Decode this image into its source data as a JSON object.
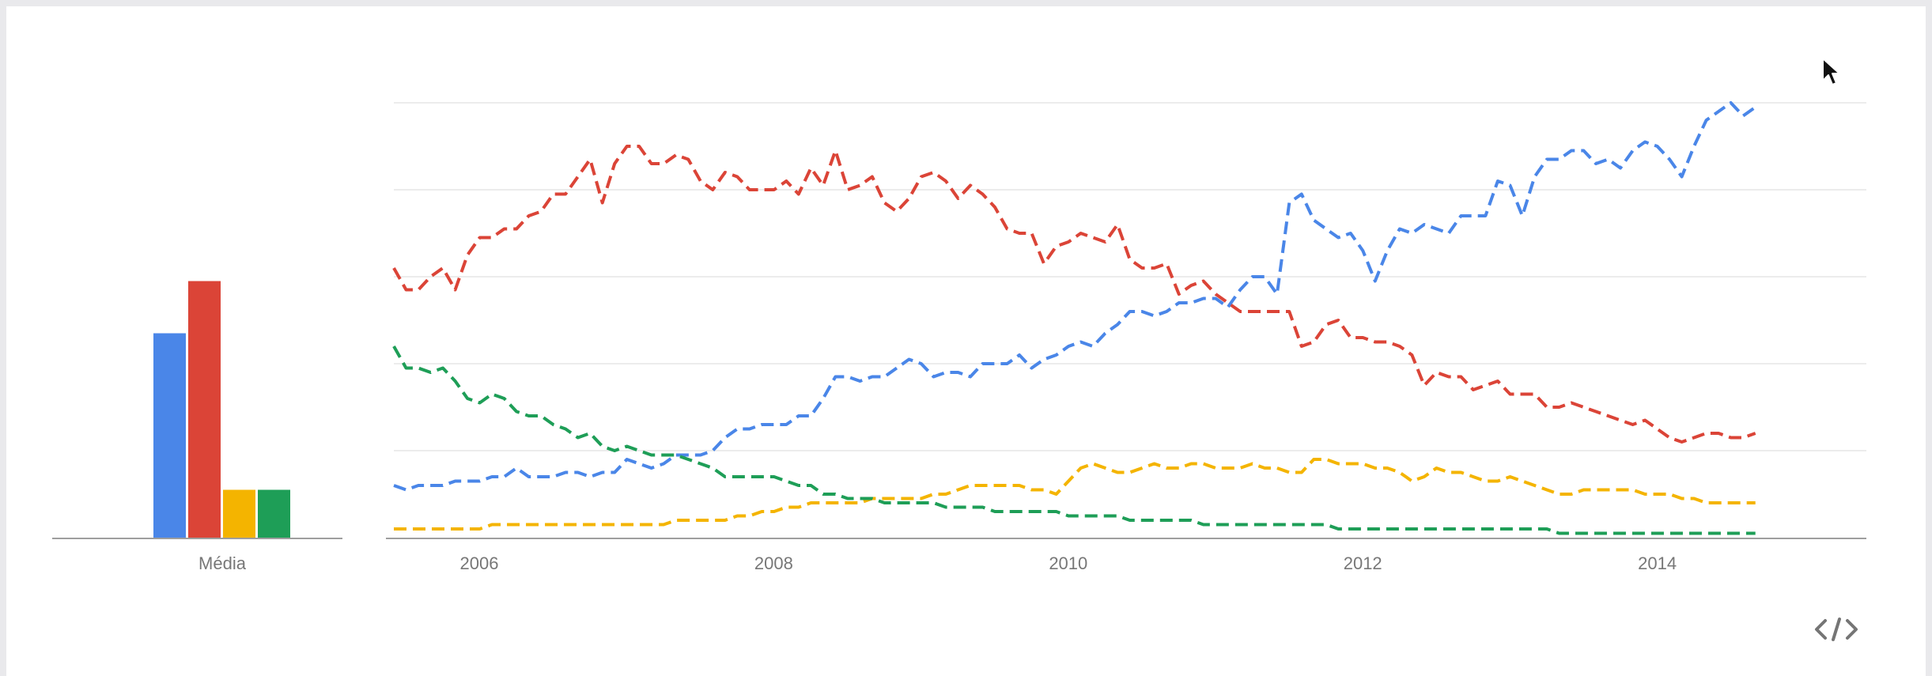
{
  "colors": {
    "blue": "#4a86e8",
    "red": "#db4437",
    "yellow": "#f4b400",
    "green": "#1e9e57",
    "grid": "#ececec",
    "axis": "#9e9e9e",
    "label": "#777777"
  },
  "icons": {
    "embed": "code-brackets-icon",
    "cursor": "mouse-pointer-icon"
  },
  "chart_data": [
    {
      "type": "bar",
      "categories": [
        "Média"
      ],
      "series": [
        {
          "color": "#4a86e8",
          "values": [
            47
          ]
        },
        {
          "color": "#db4437",
          "values": [
            59
          ]
        },
        {
          "color": "#f4b400",
          "values": [
            11
          ]
        },
        {
          "color": "#1e9e57",
          "values": [
            11
          ]
        }
      ],
      "ylim": [
        0,
        100
      ],
      "grid": false
    },
    {
      "type": "line",
      "line_style": "dashed",
      "x_start": 2005.42,
      "x_step": 0.0833,
      "xlim": [
        2005.42,
        2015.42
      ],
      "ylim": [
        0,
        100
      ],
      "x_tick_labels": [
        "2006",
        "2008",
        "2010",
        "2012",
        "2014"
      ],
      "x_ticks": [
        2006,
        2008,
        2010,
        2012,
        2014
      ],
      "grid": true,
      "y_gridlines": [
        20,
        40,
        60,
        80,
        100
      ],
      "series": [
        {
          "color": "#4a86e8",
          "values": [
            12,
            11,
            12,
            12,
            12,
            13,
            13,
            13,
            14,
            14,
            16,
            14,
            14,
            14,
            15,
            15,
            14,
            15,
            15,
            18,
            17,
            16,
            17,
            19,
            19,
            19,
            20,
            23,
            25,
            25,
            26,
            26,
            26,
            28,
            28,
            32,
            37,
            37,
            36,
            37,
            37,
            39,
            41,
            40,
            37,
            38,
            38,
            37,
            40,
            40,
            40,
            42,
            39,
            41,
            42,
            44,
            45,
            44,
            47,
            49,
            52,
            52,
            51,
            52,
            54,
            54,
            55,
            55,
            53,
            57,
            60,
            60,
            56,
            77,
            79,
            73,
            71,
            69,
            70,
            66,
            59,
            66,
            71,
            70,
            72,
            71,
            70,
            74,
            74,
            74,
            82,
            81,
            74,
            83,
            87,
            87,
            89,
            89,
            86,
            87,
            85,
            89,
            91,
            90,
            87,
            83,
            90,
            96,
            98,
            100,
            97,
            99
          ]
        },
        {
          "color": "#db4437",
          "values": [
            62,
            57,
            57,
            60,
            62,
            57,
            65,
            69,
            69,
            71,
            71,
            74,
            75,
            79,
            79,
            83,
            87,
            77,
            86,
            90,
            90,
            86,
            86,
            88,
            87,
            82,
            80,
            84,
            83,
            80,
            80,
            80,
            82,
            79,
            85,
            81,
            89,
            80,
            81,
            83,
            77,
            75,
            78,
            83,
            84,
            82,
            78,
            81,
            79,
            76,
            71,
            70,
            70,
            63,
            67,
            68,
            70,
            69,
            68,
            72,
            64,
            62,
            62,
            63,
            56,
            58,
            59,
            56,
            54,
            52,
            52,
            52,
            52,
            52,
            44,
            45,
            49,
            50,
            46,
            46,
            45,
            45,
            44,
            42,
            35,
            38,
            37,
            37,
            34,
            35,
            36,
            33,
            33,
            33,
            30,
            30,
            31,
            30,
            29,
            28,
            27,
            26,
            27,
            25,
            23,
            22,
            23,
            24,
            24,
            23,
            23,
            24
          ]
        },
        {
          "color": "#f4b400",
          "values": [
            2,
            2,
            2,
            2,
            2,
            2,
            2,
            2,
            3,
            3,
            3,
            3,
            3,
            3,
            3,
            3,
            3,
            3,
            3,
            3,
            3,
            3,
            3,
            4,
            4,
            4,
            4,
            4,
            5,
            5,
            6,
            6,
            7,
            7,
            8,
            8,
            8,
            8,
            8,
            9,
            9,
            9,
            9,
            9,
            10,
            10,
            11,
            12,
            12,
            12,
            12,
            12,
            11,
            11,
            10,
            13,
            16,
            17,
            16,
            15,
            15,
            16,
            17,
            16,
            16,
            17,
            17,
            16,
            16,
            16,
            17,
            16,
            16,
            15,
            15,
            18,
            18,
            17,
            17,
            17,
            16,
            16,
            15,
            13,
            14,
            16,
            15,
            15,
            14,
            13,
            13,
            14,
            13,
            12,
            11,
            10,
            10,
            11,
            11,
            11,
            11,
            11,
            10,
            10,
            10,
            9,
            9,
            8,
            8,
            8,
            8,
            8
          ]
        },
        {
          "color": "#1e9e57",
          "values": [
            44,
            39,
            39,
            38,
            39,
            36,
            32,
            31,
            33,
            32,
            29,
            28,
            28,
            26,
            25,
            23,
            24,
            21,
            20,
            21,
            20,
            19,
            19,
            19,
            18,
            17,
            16,
            14,
            14,
            14,
            14,
            14,
            13,
            12,
            12,
            10,
            10,
            9,
            9,
            9,
            8,
            8,
            8,
            8,
            8,
            7,
            7,
            7,
            7,
            6,
            6,
            6,
            6,
            6,
            6,
            5,
            5,
            5,
            5,
            5,
            4,
            4,
            4,
            4,
            4,
            4,
            3,
            3,
            3,
            3,
            3,
            3,
            3,
            3,
            3,
            3,
            3,
            2,
            2,
            2,
            2,
            2,
            2,
            2,
            2,
            2,
            2,
            2,
            2,
            2,
            2,
            2,
            2,
            2,
            2,
            1,
            1,
            1,
            1,
            1,
            1,
            1,
            1,
            1,
            1,
            1,
            1,
            1,
            1,
            1,
            1,
            1
          ]
        }
      ]
    }
  ]
}
